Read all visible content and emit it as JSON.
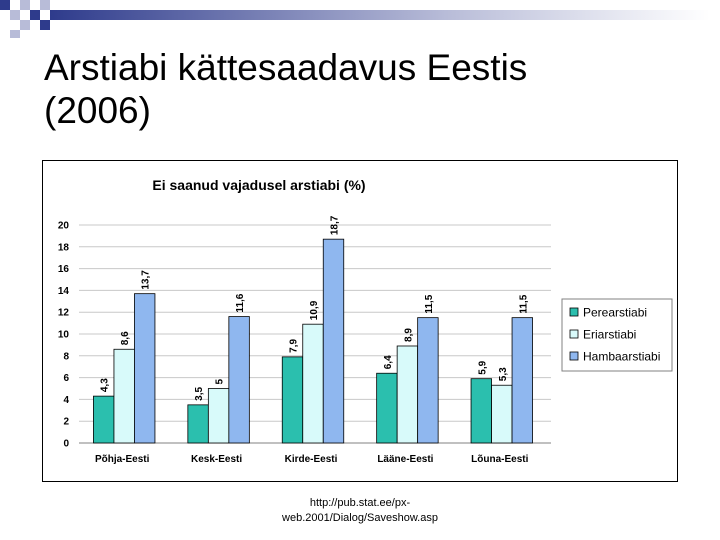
{
  "slide": {
    "title_line1": "Arstiabi kättesaadavus Eestis",
    "title_line2": "(2006)",
    "source_line1": "http://pub.stat.ee/px-",
    "source_line2": "web.2001/Dialog/Saveshow.asp"
  },
  "colors": {
    "decoration": "#2e3b8c",
    "decoration_light": "#b8bcd8"
  },
  "chart_data": {
    "type": "bar",
    "title": "Ei saanud vajadusel arstiabi (%)",
    "categories": [
      "Põhja-Eesti",
      "Kesk-Eesti",
      "Kirde-Eesti",
      "Lääne-Eesti",
      "Lõuna-Eesti"
    ],
    "series": [
      {
        "name": "Perearstiabi",
        "color": "#2bbfae",
        "values": [
          4.3,
          3.5,
          7.9,
          6.4,
          5.9
        ],
        "labels": [
          "4,3",
          "3,5",
          "7,9",
          "6,4",
          "5,9"
        ]
      },
      {
        "name": "Eriarstiabi",
        "color": "#d8fafa",
        "values": [
          8.6,
          5.0,
          10.9,
          8.9,
          5.3
        ],
        "labels": [
          "8,6",
          "5",
          "10,9",
          "8,9",
          "5,3"
        ]
      },
      {
        "name": "Hambaarstiabi",
        "color": "#8fb7ef",
        "values": [
          13.7,
          11.6,
          18.7,
          11.5,
          11.5
        ],
        "labels": [
          "13,7",
          "11,6",
          "18,7",
          "11,5",
          "11,5"
        ]
      }
    ],
    "ylim": [
      0,
      20
    ],
    "yticks": [
      0,
      2,
      4,
      6,
      8,
      10,
      12,
      14,
      16,
      18,
      20
    ],
    "grid": true,
    "legend": "right"
  }
}
